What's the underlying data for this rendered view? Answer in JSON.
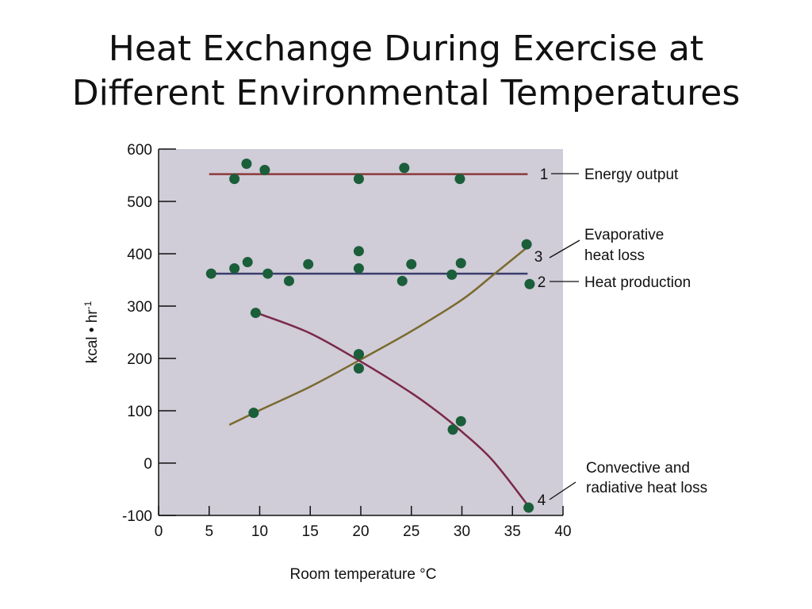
{
  "slide": {
    "title_line1": "Heat Exchange During Exercise at",
    "title_line2": "Different Environmental Temperatures"
  },
  "chart_data": {
    "type": "scatter",
    "title": "Heat Exchange During Exercise at Different Environmental Temperatures",
    "xlabel": "Room temperature °C",
    "ylabel": "kcal • hr",
    "ylabel_superscript": "-1",
    "xlim": [
      0,
      40
    ],
    "ylim": [
      -100,
      600
    ],
    "x_ticks": [
      0,
      5,
      10,
      15,
      20,
      25,
      30,
      35,
      40
    ],
    "y_ticks": [
      600,
      500,
      400,
      300,
      200,
      100,
      0,
      -100
    ],
    "plot_background": "#d0ccd8",
    "grid": false,
    "series": [
      {
        "number": "1",
        "name": "Energy output",
        "color": "#8b3a3a",
        "line_x": [
          5,
          36.5
        ],
        "line_y": [
          552,
          552
        ],
        "points": [
          [
            7.5,
            543
          ],
          [
            8.7,
            572
          ],
          [
            10.5,
            560
          ],
          [
            19.8,
            543
          ],
          [
            24.3,
            564
          ],
          [
            29.8,
            543
          ]
        ]
      },
      {
        "number": "2",
        "name": "Heat production",
        "color": "#3a3d6b",
        "line_x": [
          5,
          36.5
        ],
        "line_y": [
          362,
          362
        ],
        "points": [
          [
            5.2,
            362
          ],
          [
            7.5,
            372
          ],
          [
            8.8,
            384
          ],
          [
            10.8,
            362
          ],
          [
            12.9,
            348
          ],
          [
            14.8,
            380
          ],
          [
            19.8,
            405
          ],
          [
            19.8,
            372
          ],
          [
            24.1,
            348
          ],
          [
            25.0,
            380
          ],
          [
            29.0,
            360
          ],
          [
            29.9,
            382
          ],
          [
            36.7,
            342
          ]
        ]
      },
      {
        "number": "3",
        "name": "Evaporative heat loss",
        "color": "#7a6a2e",
        "curve": [
          [
            7,
            73
          ],
          [
            10,
            101
          ],
          [
            15,
            146
          ],
          [
            20,
            198
          ],
          [
            25,
            252
          ],
          [
            30,
            312
          ],
          [
            33,
            358
          ],
          [
            36.5,
            413
          ]
        ],
        "points": [
          [
            9.4,
            96
          ],
          [
            19.8,
            208
          ],
          [
            19.8,
            181
          ],
          [
            36.4,
            418
          ]
        ]
      },
      {
        "number": "4",
        "name": "Convective and radiative heat loss",
        "color": "#7a2848",
        "curve": [
          [
            10,
            285
          ],
          [
            15,
            248
          ],
          [
            20,
            194
          ],
          [
            25,
            134
          ],
          [
            28,
            92
          ],
          [
            30,
            60
          ],
          [
            33,
            6
          ],
          [
            36.5,
            -80
          ]
        ],
        "points": [
          [
            9.6,
            287
          ],
          [
            19.8,
            208
          ],
          [
            19.8,
            181
          ],
          [
            29.1,
            64
          ],
          [
            29.9,
            80
          ],
          [
            36.6,
            -85
          ]
        ]
      }
    ],
    "labels": {
      "energy_output": "Energy output",
      "evaporative_line1": "Evaporative",
      "evaporative_line2": "heat loss",
      "heat_production": "Heat production",
      "convective_line1": "Convective and",
      "convective_line2": "radiative heat loss"
    },
    "point_color": "#1a5e3a"
  }
}
